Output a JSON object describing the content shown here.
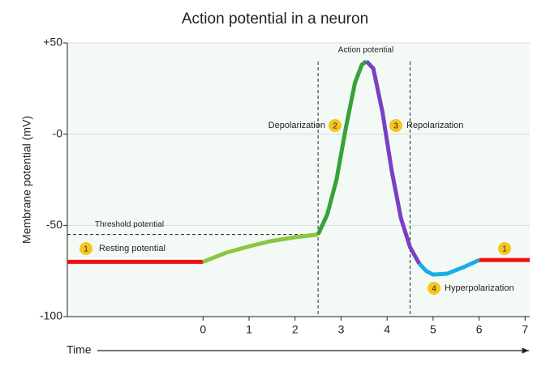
{
  "chart_data": {
    "type": "line",
    "title": "Action potential in a neuron",
    "y_label": "Membrane potential (mV)",
    "x_label": "Time",
    "xlim": [
      -2.95,
      7.1
    ],
    "xticks": [
      0,
      1,
      2,
      3,
      4,
      5,
      6,
      7
    ],
    "ylim": [
      -100,
      50
    ],
    "yticks": [
      {
        "value": 50,
        "label": "+50"
      },
      {
        "value": 0,
        "label": "-0"
      },
      -50,
      -100
    ],
    "grid": true,
    "series": [
      {
        "color": "#f01212",
        "x": [
          -2.95,
          0
        ],
        "values": [
          -70,
          -70
        ]
      },
      {
        "color": "#8dc63f",
        "x": [
          0,
          0.5,
          1,
          1.5,
          2,
          2.5
        ],
        "values": [
          -70,
          -65,
          -61.5,
          -58.5,
          -56.5,
          -55
        ]
      },
      {
        "color": "#36a23a",
        "x": [
          2.5,
          2.7,
          2.9,
          3.1,
          3.3,
          3.45,
          3.55
        ],
        "values": [
          -55,
          -44,
          -25,
          3,
          28,
          38,
          40
        ]
      },
      {
        "color": "#7a3fc6",
        "x": [
          3.55,
          3.7,
          3.9,
          4.1,
          4.3,
          4.5,
          4.7
        ],
        "values": [
          40,
          36,
          12,
          -20,
          -46,
          -62,
          -71
        ]
      },
      {
        "color": "#1aaee8",
        "x": [
          4.7,
          4.85,
          5,
          5.3,
          5.7,
          6
        ],
        "values": [
          -71,
          -75,
          -77,
          -76.5,
          -72.5,
          -69
        ]
      },
      {
        "color": "#f01212",
        "x": [
          6,
          7.1
        ],
        "values": [
          -69,
          -69
        ]
      }
    ],
    "threshold": {
      "label": "Threshold potential",
      "value": -55,
      "x_end": 2.5
    },
    "vlines": [
      2.5,
      4.5
    ],
    "peak_label": "Action potential",
    "annotations": [
      {
        "badge": "1",
        "text": "Resting potential"
      },
      {
        "badge": "2",
        "text": "Depolarization"
      },
      {
        "badge": "3",
        "text": "Repolarization"
      },
      {
        "badge": "4",
        "text": "Hyperpolarization"
      },
      {
        "badge": "1"
      }
    ]
  }
}
